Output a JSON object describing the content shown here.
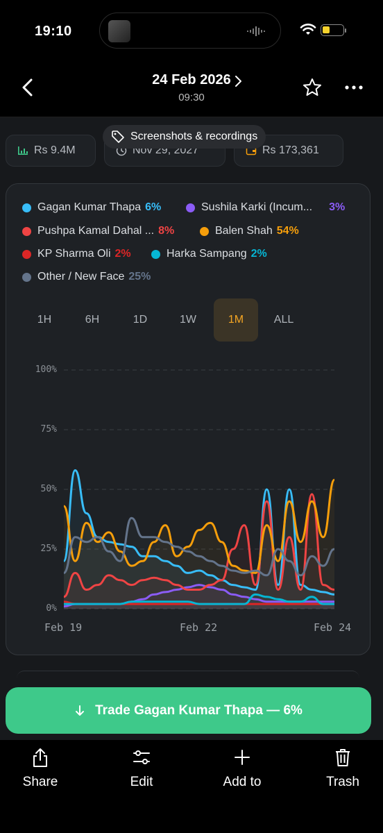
{
  "status_bar": {
    "time": "19:10"
  },
  "nav": {
    "date": "24 Feb 2026",
    "time": "09:30"
  },
  "tag_chip": {
    "label": "Screenshots & recordings"
  },
  "stats": {
    "volume": "Rs 9.4M",
    "end_date": "Nov 29, 2027",
    "liquidity": "Rs 173,361"
  },
  "legend": [
    {
      "name": "Gagan Kumar Thapa",
      "pct": "6%",
      "color": "#38bdf8"
    },
    {
      "name": "Sushila Karki (Incum...",
      "pct": "3%",
      "color": "#8b5cf6"
    },
    {
      "name": "Pushpa Kamal Dahal ...",
      "pct": "8%",
      "color": "#ef4444"
    },
    {
      "name": "Balen Shah",
      "pct": "54%",
      "color": "#f59e0b"
    },
    {
      "name": "KP Sharma Oli",
      "pct": "2%",
      "color": "#dc2626"
    },
    {
      "name": "Harka Sampang",
      "pct": "2%",
      "color": "#06b6d4"
    },
    {
      "name": "Other / New Face",
      "pct": "25%",
      "color": "#64748b"
    }
  ],
  "range_tabs": [
    "1H",
    "6H",
    "1D",
    "1W",
    "1M",
    "ALL"
  ],
  "active_range": "1M",
  "chart_data": {
    "type": "line",
    "ylim": [
      0,
      100
    ],
    "y_ticks": [
      "100%",
      "75%",
      "50%",
      "25%",
      "0%"
    ],
    "x_ticks": [
      "Feb 19",
      "Feb 22",
      "Feb 24"
    ],
    "x": [
      0,
      1,
      2,
      3,
      4,
      5,
      6,
      7,
      8,
      9,
      10,
      11,
      12,
      13,
      14,
      15,
      16,
      17,
      18,
      19,
      20,
      21,
      22,
      23,
      24
    ],
    "series": [
      {
        "name": "Gagan Kumar Thapa",
        "color": "#38bdf8",
        "values": [
          20,
          58,
          40,
          30,
          28,
          27,
          26,
          22,
          22,
          20,
          18,
          15,
          16,
          14,
          12,
          10,
          9,
          8,
          50,
          10,
          50,
          10,
          8,
          7,
          6
        ]
      },
      {
        "name": "Sushila Karki (Incum...",
        "color": "#8b5cf6",
        "values": [
          1,
          2,
          2,
          2,
          2,
          2,
          3,
          4,
          6,
          7,
          8,
          9,
          10,
          9,
          8,
          6,
          5,
          4,
          3,
          3,
          3,
          3,
          3,
          3,
          3
        ]
      },
      {
        "name": "Pushpa Kamal Dahal ...",
        "color": "#ef4444",
        "values": [
          5,
          15,
          8,
          10,
          14,
          12,
          10,
          12,
          13,
          12,
          10,
          8,
          8,
          10,
          12,
          25,
          35,
          10,
          45,
          8,
          30,
          8,
          48,
          10,
          8
        ]
      },
      {
        "name": "Balen Shah",
        "color": "#f59e0b",
        "values": [
          43,
          20,
          36,
          28,
          32,
          24,
          18,
          20,
          28,
          35,
          22,
          26,
          33,
          36,
          28,
          18,
          16,
          15,
          35,
          20,
          45,
          28,
          45,
          30,
          54
        ]
      },
      {
        "name": "KP Sharma Oli",
        "color": "#dc2626",
        "values": [
          3,
          2,
          2,
          2,
          2,
          2,
          2,
          2,
          2,
          2,
          2,
          2,
          2,
          2,
          2,
          2,
          2,
          2,
          2,
          2,
          2,
          2,
          2,
          2,
          2
        ]
      },
      {
        "name": "Harka Sampang",
        "color": "#06b6d4",
        "values": [
          2,
          2,
          2,
          2,
          2,
          2,
          3,
          3,
          3,
          3,
          3,
          3,
          2,
          2,
          2,
          2,
          2,
          6,
          5,
          4,
          3,
          3,
          5,
          2,
          2
        ]
      },
      {
        "name": "Other / New Face",
        "color": "#64748b",
        "values": [
          15,
          30,
          28,
          30,
          24,
          20,
          38,
          30,
          30,
          28,
          26,
          24,
          22,
          20,
          18,
          16,
          15,
          16,
          14,
          25,
          20,
          14,
          22,
          18,
          25
        ]
      }
    ]
  },
  "trade_button": {
    "label": "Trade Gagan Kumar Thapa — 6%"
  },
  "toolbar": {
    "share": "Share",
    "edit": "Edit",
    "add_to": "Add to",
    "trash": "Trash"
  }
}
